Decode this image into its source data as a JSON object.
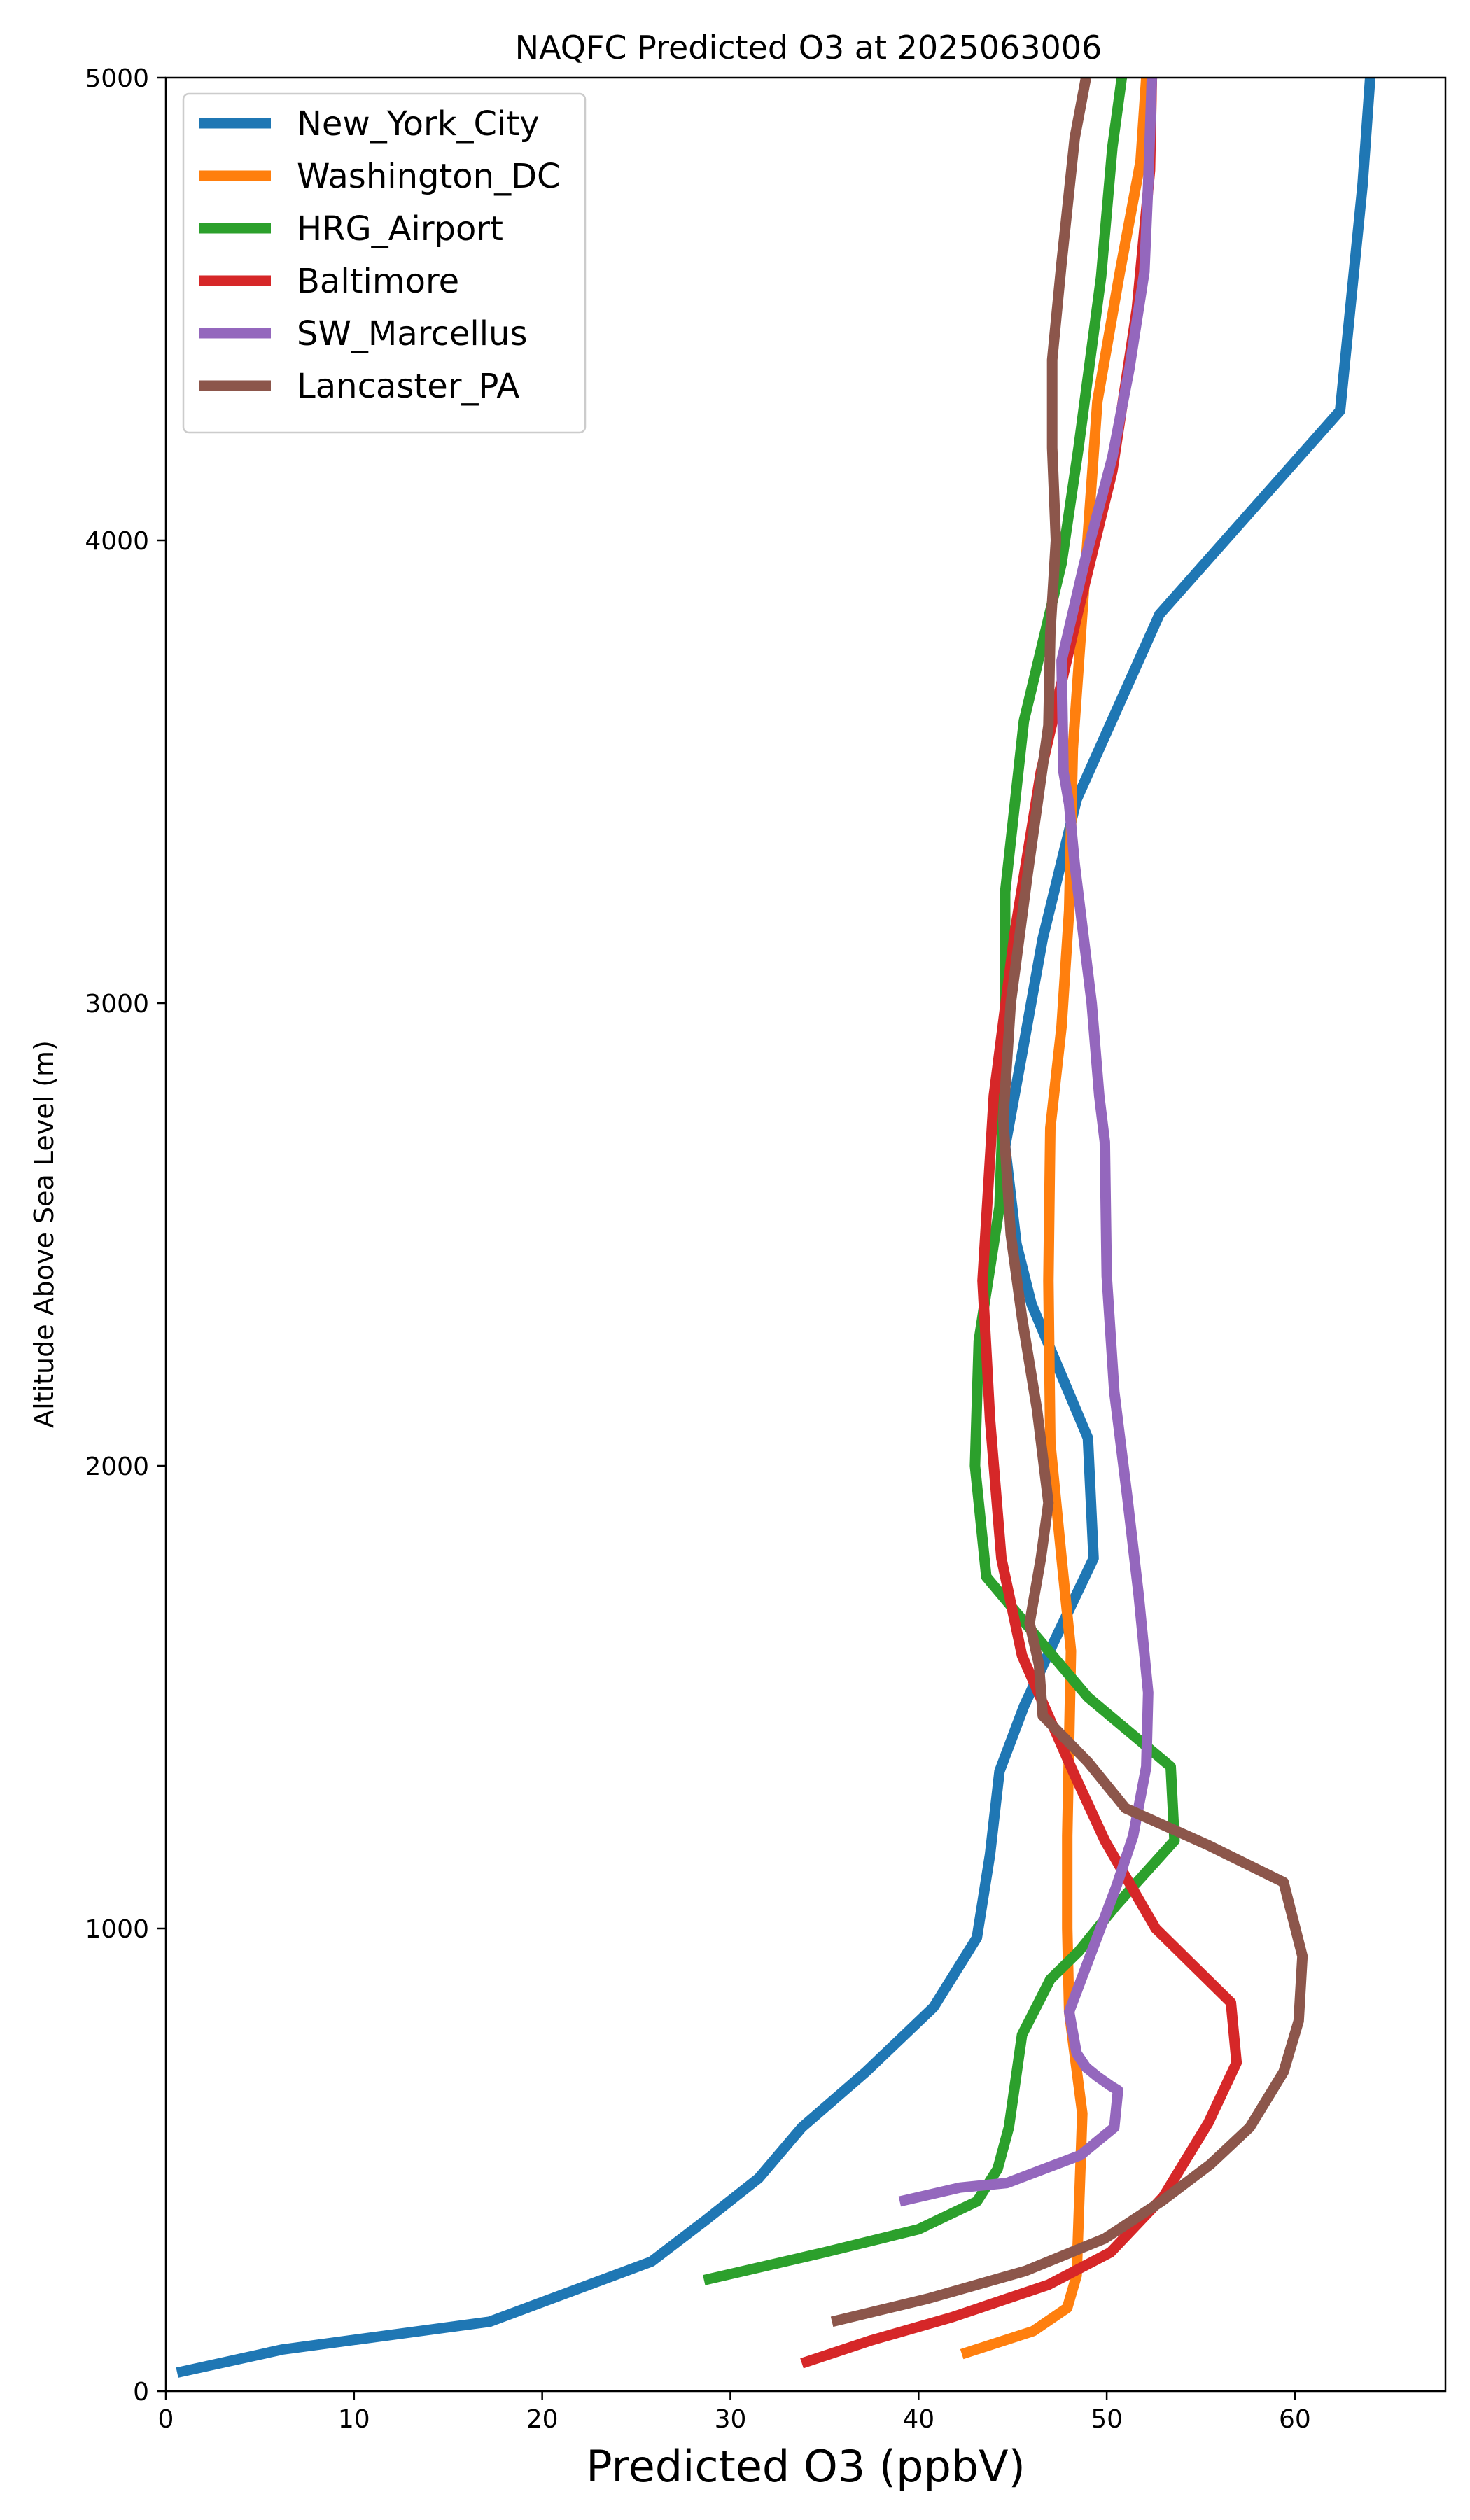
{
  "chart_data": {
    "type": "line",
    "title": "NAQFC Predicted O3 at 2025063006",
    "xlabel": "Predicted O3 (ppbV)",
    "ylabel": "Altitude Above Sea Level (m)",
    "xlim": [
      0,
      68
    ],
    "ylim": [
      0,
      5000
    ],
    "xticks": [
      0,
      10,
      20,
      30,
      40,
      50,
      60
    ],
    "yticks": [
      0,
      1000,
      2000,
      3000,
      4000,
      5000
    ],
    "grid": false,
    "legend_position": "upper-left",
    "series": [
      {
        "name": "New_York_City",
        "color": "#1f77b4",
        "points": [
          [
            0.6,
            40
          ],
          [
            6.2,
            90
          ],
          [
            17.2,
            150
          ],
          [
            25.8,
            280
          ],
          [
            28.7,
            370
          ],
          [
            31.5,
            460
          ],
          [
            33.8,
            570
          ],
          [
            37.2,
            690
          ],
          [
            40.8,
            830
          ],
          [
            43.1,
            980
          ],
          [
            43.8,
            1160
          ],
          [
            44.3,
            1340
          ],
          [
            45.6,
            1480
          ],
          [
            47.2,
            1620
          ],
          [
            49.3,
            1800
          ],
          [
            49.0,
            2060
          ],
          [
            46.0,
            2350
          ],
          [
            45.2,
            2480
          ],
          [
            44.6,
            2690
          ],
          [
            45.5,
            2890
          ],
          [
            46.6,
            3140
          ],
          [
            48.4,
            3440
          ],
          [
            52.8,
            3840
          ],
          [
            62.4,
            4280
          ],
          [
            63.6,
            4770
          ],
          [
            64.0,
            5000
          ]
        ]
      },
      {
        "name": "Washington_DC",
        "color": "#ff7f0e",
        "points": [
          [
            42.3,
            80
          ],
          [
            46.1,
            130
          ],
          [
            47.9,
            180
          ],
          [
            48.4,
            250
          ],
          [
            48.7,
            600
          ],
          [
            48.0,
            820
          ],
          [
            47.9,
            1000
          ],
          [
            47.9,
            1200
          ],
          [
            48.1,
            1600
          ],
          [
            47.6,
            1800
          ],
          [
            47.0,
            2050
          ],
          [
            46.9,
            2400
          ],
          [
            47.0,
            2730
          ],
          [
            47.6,
            2950
          ],
          [
            48.0,
            3200
          ],
          [
            48.2,
            3550
          ],
          [
            48.8,
            3900
          ],
          [
            49.5,
            4300
          ],
          [
            50.7,
            4580
          ],
          [
            51.8,
            4820
          ],
          [
            52.1,
            5000
          ]
        ]
      },
      {
        "name": "HRG_Airport",
        "color": "#2ca02c",
        "points": [
          [
            28.6,
            240
          ],
          [
            35.0,
            300
          ],
          [
            40.0,
            350
          ],
          [
            43.1,
            410
          ],
          [
            44.2,
            480
          ],
          [
            44.8,
            570
          ],
          [
            45.5,
            770
          ],
          [
            47.0,
            890
          ],
          [
            48.5,
            950
          ],
          [
            50.5,
            1050
          ],
          [
            53.6,
            1190
          ],
          [
            53.4,
            1350
          ],
          [
            49.0,
            1500
          ],
          [
            46.5,
            1620
          ],
          [
            43.6,
            1760
          ],
          [
            43.0,
            2000
          ],
          [
            43.2,
            2270
          ],
          [
            44.3,
            2560
          ],
          [
            44.6,
            2900
          ],
          [
            44.6,
            3240
          ],
          [
            45.6,
            3610
          ],
          [
            47.6,
            3950
          ],
          [
            48.5,
            4200
          ],
          [
            49.7,
            4570
          ],
          [
            50.3,
            4850
          ],
          [
            50.8,
            5000
          ]
        ]
      },
      {
        "name": "Baltimore",
        "color": "#d62728",
        "points": [
          [
            33.8,
            60
          ],
          [
            37.5,
            110
          ],
          [
            41.8,
            160
          ],
          [
            46.9,
            230
          ],
          [
            50.2,
            300
          ],
          [
            53.0,
            420
          ],
          [
            55.4,
            580
          ],
          [
            56.9,
            710
          ],
          [
            56.6,
            840
          ],
          [
            52.6,
            1000
          ],
          [
            49.9,
            1190
          ],
          [
            48.2,
            1340
          ],
          [
            46.9,
            1460
          ],
          [
            45.5,
            1590
          ],
          [
            44.4,
            1800
          ],
          [
            43.8,
            2100
          ],
          [
            43.4,
            2400
          ],
          [
            44.0,
            2800
          ],
          [
            45.1,
            3150
          ],
          [
            46.5,
            3500
          ],
          [
            48.5,
            3850
          ],
          [
            50.3,
            4150
          ],
          [
            51.6,
            4500
          ],
          [
            52.3,
            4800
          ],
          [
            52.4,
            5000
          ]
        ]
      },
      {
        "name": "SW_Marcellus",
        "color": "#9467bd",
        "points": [
          [
            39.0,
            410
          ],
          [
            42.2,
            440
          ],
          [
            44.7,
            450
          ],
          [
            48.6,
            510
          ],
          [
            50.4,
            570
          ],
          [
            50.6,
            650
          ],
          [
            50.2,
            660
          ],
          [
            49.5,
            680
          ],
          [
            48.9,
            700
          ],
          [
            48.4,
            730
          ],
          [
            48.0,
            820
          ],
          [
            49.2,
            950
          ],
          [
            50.5,
            1090
          ],
          [
            51.4,
            1200
          ],
          [
            52.1,
            1350
          ],
          [
            52.2,
            1510
          ],
          [
            51.7,
            1720
          ],
          [
            51.1,
            1930
          ],
          [
            50.4,
            2160
          ],
          [
            50.0,
            2410
          ],
          [
            49.9,
            2700
          ],
          [
            49.6,
            2800
          ],
          [
            49.2,
            3000
          ],
          [
            48.3,
            3300
          ],
          [
            48.0,
            3430
          ],
          [
            47.7,
            3500
          ],
          [
            47.6,
            3740
          ],
          [
            48.8,
            3950
          ],
          [
            50.3,
            4180
          ],
          [
            51.2,
            4370
          ],
          [
            52.0,
            4580
          ],
          [
            52.2,
            4770
          ],
          [
            52.4,
            5000
          ]
        ]
      },
      {
        "name": "Lancaster_PA",
        "color": "#8c564b",
        "points": [
          [
            35.4,
            150
          ],
          [
            40.5,
            200
          ],
          [
            45.7,
            260
          ],
          [
            49.9,
            330
          ],
          [
            52.9,
            410
          ],
          [
            55.5,
            490
          ],
          [
            57.6,
            570
          ],
          [
            59.4,
            690
          ],
          [
            60.2,
            800
          ],
          [
            60.4,
            940
          ],
          [
            59.4,
            1100
          ],
          [
            55.4,
            1180
          ],
          [
            51.0,
            1260
          ],
          [
            49.0,
            1360
          ],
          [
            46.6,
            1460
          ],
          [
            46.4,
            1570
          ],
          [
            45.9,
            1660
          ],
          [
            46.5,
            1800
          ],
          [
            46.9,
            1920
          ],
          [
            46.3,
            2120
          ],
          [
            45.5,
            2320
          ],
          [
            44.9,
            2500
          ],
          [
            44.5,
            2750
          ],
          [
            44.9,
            3000
          ],
          [
            45.8,
            3280
          ],
          [
            46.9,
            3600
          ],
          [
            47.0,
            3800
          ],
          [
            47.3,
            4000
          ],
          [
            47.1,
            4200
          ],
          [
            47.1,
            4390
          ],
          [
            47.6,
            4600
          ],
          [
            48.3,
            4870
          ],
          [
            48.9,
            5000
          ]
        ]
      }
    ]
  }
}
